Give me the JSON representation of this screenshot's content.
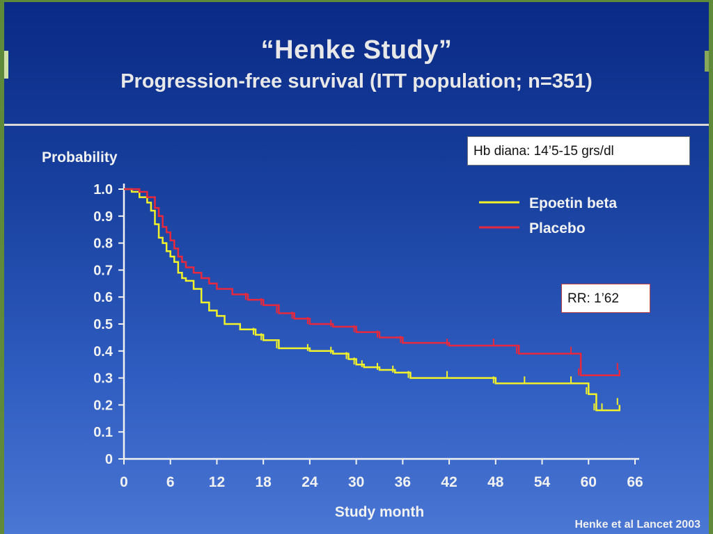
{
  "slide": {
    "title": "“Henke Study”",
    "subtitle": "Progression-free survival (ITT population; n=351)",
    "annotation_hb": "Hb diana: 14’5-15 grs/dl",
    "annotation_rr": "RR: 1’62",
    "citation": "Henke et al Lancet 2003"
  },
  "chart_data": {
    "type": "line",
    "title": "",
    "xlabel": "Study month",
    "ylabel": "Probability",
    "xlim": [
      0,
      66
    ],
    "ylim": [
      0,
      1.0
    ],
    "x_ticks": [
      "0",
      "6",
      "12",
      "18",
      "24",
      "30",
      "36",
      "42",
      "48",
      "54",
      "60",
      "66"
    ],
    "y_ticks": [
      "0",
      "0.1",
      "0.2",
      "0.3",
      "0.4",
      "0.5",
      "0.6",
      "0.7",
      "0.8",
      "0.9",
      "1.0"
    ],
    "legend_position": "top-right",
    "grid": false,
    "series": [
      {
        "name": "Epoetin beta",
        "color": "#f2f22a",
        "x": [
          0,
          1,
          2,
          3,
          3.5,
          4,
          4.5,
          5,
          5.5,
          6,
          6.5,
          7,
          7.5,
          8,
          9,
          10,
          11,
          12,
          13,
          15,
          17,
          18,
          20,
          24,
          27,
          29,
          30,
          31,
          33,
          35,
          37,
          42,
          48,
          52,
          58,
          60,
          61,
          62,
          64
        ],
        "y": [
          1.0,
          0.99,
          0.97,
          0.95,
          0.92,
          0.87,
          0.82,
          0.8,
          0.77,
          0.75,
          0.73,
          0.69,
          0.67,
          0.66,
          0.63,
          0.58,
          0.55,
          0.53,
          0.5,
          0.48,
          0.46,
          0.44,
          0.41,
          0.4,
          0.39,
          0.37,
          0.35,
          0.34,
          0.33,
          0.32,
          0.3,
          0.3,
          0.28,
          0.28,
          0.28,
          0.24,
          0.18,
          0.18,
          0.2
        ]
      },
      {
        "name": "Placebo",
        "color": "#e8283c",
        "x": [
          0,
          1,
          2,
          3,
          4,
          4.5,
          5,
          5.5,
          6,
          6.5,
          7,
          7.5,
          8,
          9,
          10,
          11,
          12,
          14,
          16,
          18,
          20,
          22,
          24,
          27,
          30,
          33,
          36,
          42,
          48,
          51,
          58,
          59,
          64
        ],
        "y": [
          1.0,
          1.0,
          0.99,
          0.97,
          0.93,
          0.9,
          0.86,
          0.84,
          0.81,
          0.78,
          0.75,
          0.73,
          0.71,
          0.69,
          0.67,
          0.65,
          0.63,
          0.61,
          0.59,
          0.57,
          0.54,
          0.52,
          0.5,
          0.49,
          0.47,
          0.45,
          0.43,
          0.42,
          0.42,
          0.39,
          0.39,
          0.31,
          0.33
        ]
      }
    ]
  }
}
